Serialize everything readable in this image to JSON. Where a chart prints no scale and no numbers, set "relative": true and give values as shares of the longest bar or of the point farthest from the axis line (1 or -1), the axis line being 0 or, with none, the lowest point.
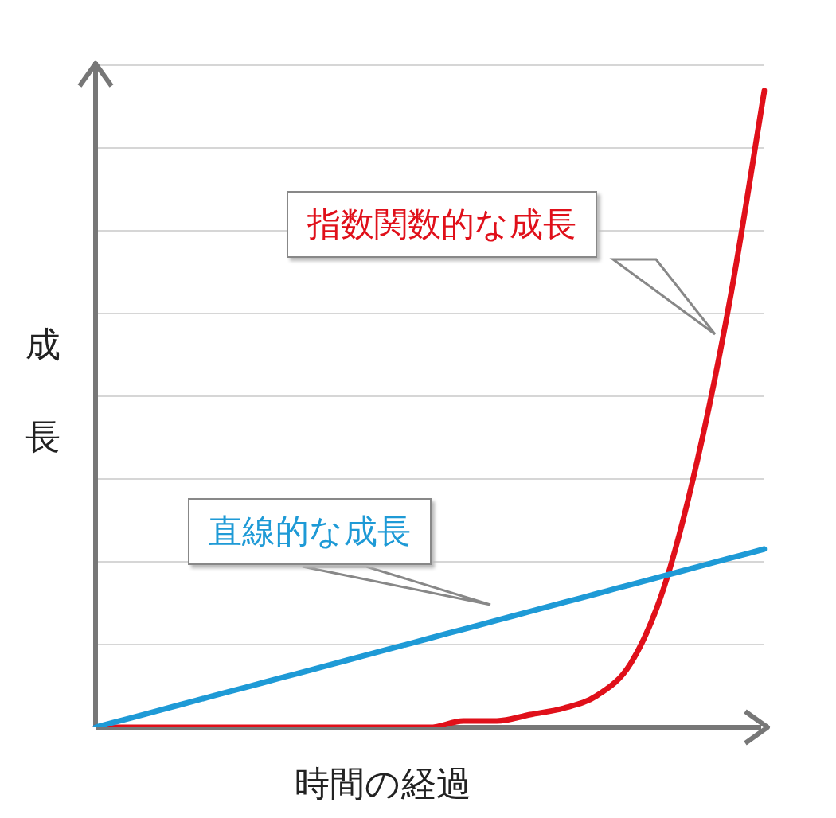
{
  "chart_data": {
    "type": "line",
    "relative": true,
    "xlabel": "時間の経過",
    "ylabel": "成長",
    "grid": "y",
    "legend": false,
    "marker": "none",
    "categories": [
      null,
      null,
      null,
      null,
      null,
      null,
      null,
      null,
      null,
      null,
      null,
      null,
      null,
      null,
      null,
      null,
      null,
      null,
      null,
      null,
      null
    ],
    "series": [
      {
        "name": "直線的な成長",
        "color": "#1e9ad6",
        "values": [
          0,
          0.014,
          0.028,
          0.042,
          0.056,
          0.07,
          0.084,
          0.098,
          0.112,
          0.126,
          0.14,
          0.154,
          0.168,
          0.182,
          0.196,
          0.21,
          0.224,
          0.238,
          0.252,
          0.266,
          0.28
        ]
      },
      {
        "name": "指数関数的な成長",
        "color": "#e0101a",
        "values": [
          0,
          0,
          0,
          0,
          0,
          0,
          0,
          0,
          0,
          0,
          0,
          0.01,
          0.01,
          0.02,
          0.03,
          0.05,
          0.1,
          0.22,
          0.42,
          0.68,
          1
        ]
      }
    ]
  }
}
